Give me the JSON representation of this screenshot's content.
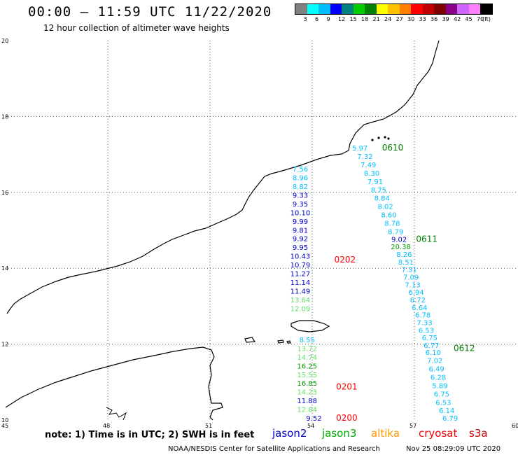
{
  "header": {
    "title": "00:00 – 11:59 UTC 11/22/2020",
    "subtitle": "12 hour collection of altimeter wave heights"
  },
  "legend": {
    "unit": "(ft)",
    "colors": [
      "#808080",
      "#00ffff",
      "#00bfff",
      "#0000ff",
      "#008080",
      "#00cc00",
      "#008000",
      "#ffff00",
      "#ffc000",
      "#ff8000",
      "#ff0000",
      "#c00000",
      "#800000",
      "#8b008b",
      "#cc66ff",
      "#ff80ff",
      "#000000"
    ],
    "labels": [
      "3",
      "6",
      "9",
      "12",
      "15",
      "18",
      "21",
      "24",
      "27",
      "30",
      "33",
      "36",
      "39",
      "42",
      "45",
      "70"
    ]
  },
  "map": {
    "lon_ticks": [
      "45",
      "48",
      "51",
      "54",
      "57",
      "60"
    ],
    "lat_ticks": [
      "10",
      "12",
      "14",
      "16",
      "18",
      "20"
    ],
    "tracks": [
      {
        "id": "0202",
        "label": "0202",
        "label_color": "#ff0000",
        "label_pos": {
          "lon": 54.65,
          "lat": 14.15
        },
        "points": [
          {
            "lon": 53.65,
            "lat": 16.55,
            "v": "7.56",
            "c": "#00bfff"
          },
          {
            "lon": 53.65,
            "lat": 16.32,
            "v": "8.96",
            "c": "#00bfff"
          },
          {
            "lon": 53.65,
            "lat": 16.09,
            "v": "8.82",
            "c": "#00bfff"
          },
          {
            "lon": 53.65,
            "lat": 15.86,
            "v": "9.33",
            "c": "#0000cc"
          },
          {
            "lon": 53.65,
            "lat": 15.63,
            "v": "9.35",
            "c": "#0000cc"
          },
          {
            "lon": 53.65,
            "lat": 15.4,
            "v": "10.10",
            "c": "#0000cc"
          },
          {
            "lon": 53.65,
            "lat": 15.17,
            "v": "9.99",
            "c": "#0000cc"
          },
          {
            "lon": 53.65,
            "lat": 14.94,
            "v": "9.81",
            "c": "#0000cc"
          },
          {
            "lon": 53.65,
            "lat": 14.71,
            "v": "9.92",
            "c": "#0000cc"
          },
          {
            "lon": 53.65,
            "lat": 14.48,
            "v": "9.95",
            "c": "#0000cc"
          },
          {
            "lon": 53.65,
            "lat": 14.25,
            "v": "10.43",
            "c": "#0000cc"
          },
          {
            "lon": 53.65,
            "lat": 14.02,
            "v": "10.79",
            "c": "#0000cc"
          },
          {
            "lon": 53.65,
            "lat": 13.79,
            "v": "11.27",
            "c": "#0000cc"
          },
          {
            "lon": 53.65,
            "lat": 13.56,
            "v": "11.14",
            "c": "#0000cc"
          },
          {
            "lon": 53.65,
            "lat": 13.33,
            "v": "11.49",
            "c": "#0000cc"
          },
          {
            "lon": 53.65,
            "lat": 13.1,
            "v": "13.64",
            "c": "#66dd66"
          },
          {
            "lon": 53.65,
            "lat": 12.87,
            "v": "12.09",
            "c": "#66dd66"
          }
        ]
      },
      {
        "id": "0201",
        "label": "0201",
        "label_color": "#ff0000",
        "label_pos": {
          "lon": 54.7,
          "lat": 10.8
        },
        "points": [
          {
            "lon": 53.85,
            "lat": 12.05,
            "v": "8.55",
            "c": "#00bfff"
          },
          {
            "lon": 53.85,
            "lat": 11.82,
            "v": "13.72",
            "c": "#66dd66"
          },
          {
            "lon": 53.85,
            "lat": 11.59,
            "v": "14.74",
            "c": "#66dd66"
          },
          {
            "lon": 53.85,
            "lat": 11.36,
            "v": "16.25",
            "c": "#009900"
          },
          {
            "lon": 53.85,
            "lat": 11.13,
            "v": "15.55",
            "c": "#66dd66"
          },
          {
            "lon": 53.85,
            "lat": 10.9,
            "v": "16.85",
            "c": "#009900"
          },
          {
            "lon": 53.85,
            "lat": 10.67,
            "v": "14.23",
            "c": "#66dd66"
          },
          {
            "lon": 53.85,
            "lat": 10.44,
            "v": "11.88",
            "c": "#0000cc"
          },
          {
            "lon": 53.85,
            "lat": 10.21,
            "v": "12.84",
            "c": "#66dd66"
          }
        ]
      },
      {
        "id": "0200",
        "label": "0200",
        "label_color": "#ff0000",
        "label_pos": {
          "lon": 54.7,
          "lat": 9.98
        },
        "points": [
          {
            "lon": 54.05,
            "lat": 9.98,
            "v": "9.52",
            "c": "#0000cc"
          }
        ]
      },
      {
        "id": "0610",
        "label": "0610",
        "label_color": "#008000",
        "label_pos": {
          "lon": 56.05,
          "lat": 17.1
        },
        "points": [
          {
            "lon": 55.4,
            "lat": 17.1,
            "v": "5.97",
            "c": "#00bfff"
          },
          {
            "lon": 55.55,
            "lat": 16.88,
            "v": "7.32",
            "c": "#00bfff"
          },
          {
            "lon": 55.65,
            "lat": 16.66,
            "v": "7.49",
            "c": "#00bfff"
          },
          {
            "lon": 55.75,
            "lat": 16.44,
            "v": "8.30",
            "c": "#00bfff"
          },
          {
            "lon": 55.85,
            "lat": 16.22,
            "v": "7.91",
            "c": "#00bfff"
          },
          {
            "lon": 55.95,
            "lat": 16.0,
            "v": "8.75",
            "c": "#00bfff"
          },
          {
            "lon": 56.05,
            "lat": 15.78,
            "v": "8.84",
            "c": "#00bfff"
          },
          {
            "lon": 56.15,
            "lat": 15.56,
            "v": "8.02",
            "c": "#00bfff"
          },
          {
            "lon": 56.25,
            "lat": 15.34,
            "v": "8.60",
            "c": "#00bfff"
          },
          {
            "lon": 56.35,
            "lat": 15.12,
            "v": "8.78",
            "c": "#00bfff"
          },
          {
            "lon": 56.45,
            "lat": 14.9,
            "v": "8.79",
            "c": "#00bfff"
          }
        ]
      },
      {
        "id": "0611",
        "label": "0611",
        "label_color": "#008000",
        "label_pos": {
          "lon": 57.05,
          "lat": 14.7
        },
        "points": [
          {
            "lon": 56.55,
            "lat": 14.7,
            "v": "9.02",
            "c": "#0000cc"
          },
          {
            "lon": 56.6,
            "lat": 14.5,
            "v": "20.38",
            "c": "#009900"
          },
          {
            "lon": 56.7,
            "lat": 14.3,
            "v": "8.26",
            "c": "#00bfff"
          },
          {
            "lon": 56.75,
            "lat": 14.1,
            "v": "8.51",
            "c": "#00bfff"
          },
          {
            "lon": 56.85,
            "lat": 13.9,
            "v": "7.31",
            "c": "#00bfff"
          },
          {
            "lon": 56.9,
            "lat": 13.7,
            "v": "7.09",
            "c": "#00bfff"
          },
          {
            "lon": 56.95,
            "lat": 13.5,
            "v": "7.13",
            "c": "#00bfff"
          },
          {
            "lon": 57.05,
            "lat": 13.3,
            "v": "6.94",
            "c": "#00bfff"
          },
          {
            "lon": 57.1,
            "lat": 13.1,
            "v": "6.72",
            "c": "#00bfff"
          },
          {
            "lon": 57.15,
            "lat": 12.9,
            "v": "6.64",
            "c": "#00bfff"
          },
          {
            "lon": 57.25,
            "lat": 12.7,
            "v": "6.78",
            "c": "#00bfff"
          },
          {
            "lon": 57.3,
            "lat": 12.5,
            "v": "7.33",
            "c": "#00bfff"
          },
          {
            "lon": 57.35,
            "lat": 12.3,
            "v": "6.53",
            "c": "#00bfff"
          },
          {
            "lon": 57.45,
            "lat": 12.1,
            "v": "6.75",
            "c": "#00bfff"
          },
          {
            "lon": 57.5,
            "lat": 11.9,
            "v": "6.77",
            "c": "#00bfff"
          }
        ]
      },
      {
        "id": "0612",
        "label": "0612",
        "label_color": "#008000",
        "label_pos": {
          "lon": 58.15,
          "lat": 11.82
        },
        "points": [
          {
            "lon": 57.55,
            "lat": 11.72,
            "v": "6.10",
            "c": "#00bfff"
          },
          {
            "lon": 57.6,
            "lat": 11.5,
            "v": "7.02",
            "c": "#00bfff"
          },
          {
            "lon": 57.65,
            "lat": 11.28,
            "v": "6.49",
            "c": "#00bfff"
          },
          {
            "lon": 57.7,
            "lat": 11.06,
            "v": "6.28",
            "c": "#00bfff"
          },
          {
            "lon": 57.75,
            "lat": 10.84,
            "v": "5.89",
            "c": "#00bfff"
          },
          {
            "lon": 57.8,
            "lat": 10.62,
            "v": "6.75",
            "c": "#00bfff"
          },
          {
            "lon": 57.85,
            "lat": 10.4,
            "v": "6.53",
            "c": "#00bfff"
          },
          {
            "lon": 57.95,
            "lat": 10.18,
            "v": "6.14",
            "c": "#00bfff"
          },
          {
            "lon": 58.05,
            "lat": 9.98,
            "v": "6.79",
            "c": "#00bfff"
          }
        ]
      }
    ]
  },
  "footer": {
    "note": "note: 1) Time is in UTC; 2) SWH is in feet",
    "satellites": [
      {
        "name": "jason2",
        "color": "#0000cc"
      },
      {
        "name": "jason3",
        "color": "#00aa00"
      },
      {
        "name": "altika",
        "color": "#ff9900"
      },
      {
        "name": "cryosat",
        "color": "#ee0000"
      },
      {
        "name": "s3a",
        "color": "#cc0000"
      }
    ],
    "credit": "NOAA/NESDIS Center for Satellite Applications and Research",
    "timestamp": "Nov 25 08:29:09 UTC 2020"
  }
}
